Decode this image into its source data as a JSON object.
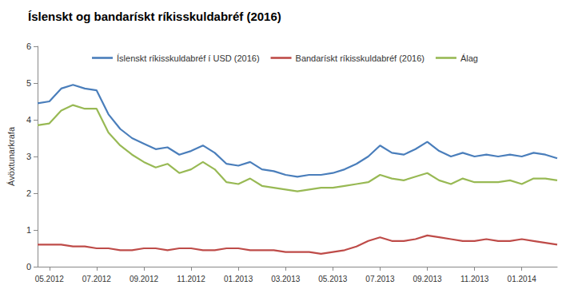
{
  "chart_data": {
    "type": "line",
    "title": "Íslenskt og bandarískt ríkisskuldabréf (2016)",
    "y_label": "Ávöxtunarkrafa",
    "categories": [
      null,
      "05.2012",
      null,
      null,
      null,
      "07.2012",
      null,
      null,
      null,
      "09.2012",
      null,
      null,
      null,
      "11.2012",
      null,
      null,
      null,
      "01.2013",
      null,
      null,
      null,
      "03.2013",
      null,
      null,
      null,
      "05.2013",
      null,
      null,
      null,
      "07.2013",
      null,
      null,
      null,
      "09.2013",
      null,
      null,
      null,
      "11.2013",
      null,
      null,
      null,
      "01.2014",
      null,
      null,
      null
    ],
    "series": [
      {
        "name": "Íslenskt ríkisskuldabréf í USD (2016)",
        "color": "#4a7ebb",
        "values": [
          4.45,
          4.5,
          4.85,
          4.95,
          4.85,
          4.8,
          4.15,
          3.75,
          3.5,
          3.35,
          3.2,
          3.25,
          3.05,
          3.15,
          3.3,
          3.1,
          2.8,
          2.75,
          2.85,
          2.65,
          2.6,
          2.5,
          2.45,
          2.5,
          2.5,
          2.55,
          2.65,
          2.8,
          3.0,
          3.3,
          3.1,
          3.05,
          3.2,
          3.4,
          3.15,
          3.0,
          3.1,
          3.0,
          3.05,
          3.0,
          3.05,
          3.0,
          3.1,
          3.05,
          2.95
        ]
      },
      {
        "name": "Bandarískt ríkisskuldabréf (2016)",
        "color": "#be4b48",
        "values": [
          0.6,
          0.6,
          0.6,
          0.55,
          0.55,
          0.5,
          0.5,
          0.45,
          0.45,
          0.5,
          0.5,
          0.45,
          0.5,
          0.5,
          0.45,
          0.45,
          0.5,
          0.5,
          0.45,
          0.45,
          0.45,
          0.4,
          0.4,
          0.4,
          0.35,
          0.4,
          0.45,
          0.55,
          0.7,
          0.8,
          0.7,
          0.7,
          0.75,
          0.85,
          0.8,
          0.75,
          0.7,
          0.7,
          0.75,
          0.7,
          0.7,
          0.75,
          0.7,
          0.65,
          0.6
        ]
      },
      {
        "name": "Álag",
        "color": "#98b954",
        "values": [
          3.85,
          3.9,
          4.25,
          4.4,
          4.3,
          4.3,
          3.65,
          3.3,
          3.05,
          2.85,
          2.7,
          2.8,
          2.55,
          2.65,
          2.85,
          2.65,
          2.3,
          2.25,
          2.4,
          2.2,
          2.15,
          2.1,
          2.05,
          2.1,
          2.15,
          2.15,
          2.2,
          2.25,
          2.3,
          2.5,
          2.4,
          2.35,
          2.45,
          2.55,
          2.35,
          2.25,
          2.4,
          2.3,
          2.3,
          2.3,
          2.35,
          2.25,
          2.4,
          2.4,
          2.35
        ]
      }
    ],
    "ylim": [
      0,
      6
    ],
    "yticks": [
      0,
      1,
      2,
      3,
      4,
      5,
      6
    ],
    "grid": false,
    "legend": "top"
  }
}
